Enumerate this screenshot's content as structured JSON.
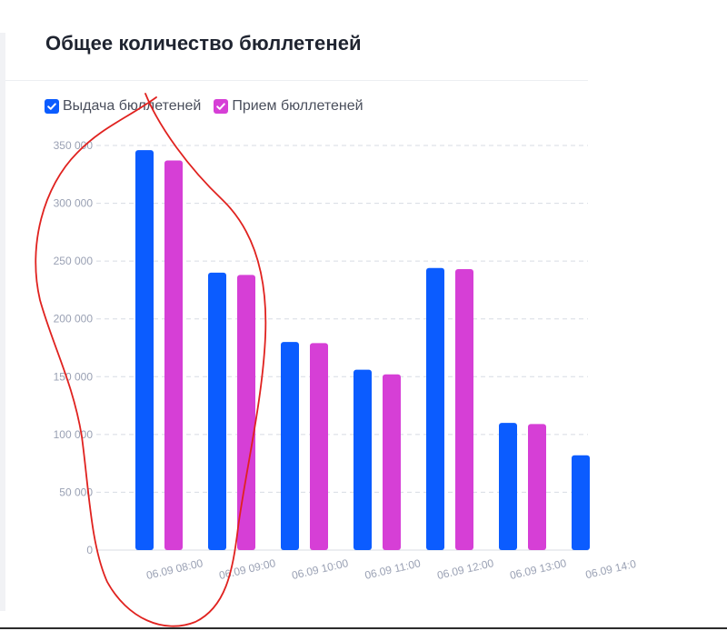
{
  "card": {
    "title": "Общее количество бюллетеней"
  },
  "legend": [
    {
      "label": "Выдача бюллетеней",
      "color": "#0b5cff",
      "checked": true
    },
    {
      "label": "Прием бюллетеней",
      "color": "#d63fd6",
      "checked": true
    }
  ],
  "chart_data": {
    "type": "bar",
    "categories": [
      "06.09 08:00",
      "06.09 09:00",
      "06.09 10:00",
      "06.09 11:00",
      "06.09 12:00",
      "06.09 13:00",
      "06.09 14:0"
    ],
    "series": [
      {
        "name": "Выдача бюллетеней",
        "color": "#0b5cff",
        "values": [
          346000,
          240000,
          180000,
          156000,
          244000,
          110000,
          82000
        ]
      },
      {
        "name": "Прием бюллетеней",
        "color": "#d63fd6",
        "values": [
          337000,
          238000,
          179000,
          152000,
          243000,
          109000,
          null
        ]
      }
    ],
    "yticks": [
      "0",
      "50 000",
      "100 000",
      "150 000",
      "200 000",
      "250 000",
      "300 000",
      "350 000"
    ],
    "ylim": [
      0,
      350000
    ],
    "grid": true,
    "legend_position": "top-left",
    "annotation": "red hand-drawn loop around 06.09 08:00 and 06.09 09:00"
  }
}
